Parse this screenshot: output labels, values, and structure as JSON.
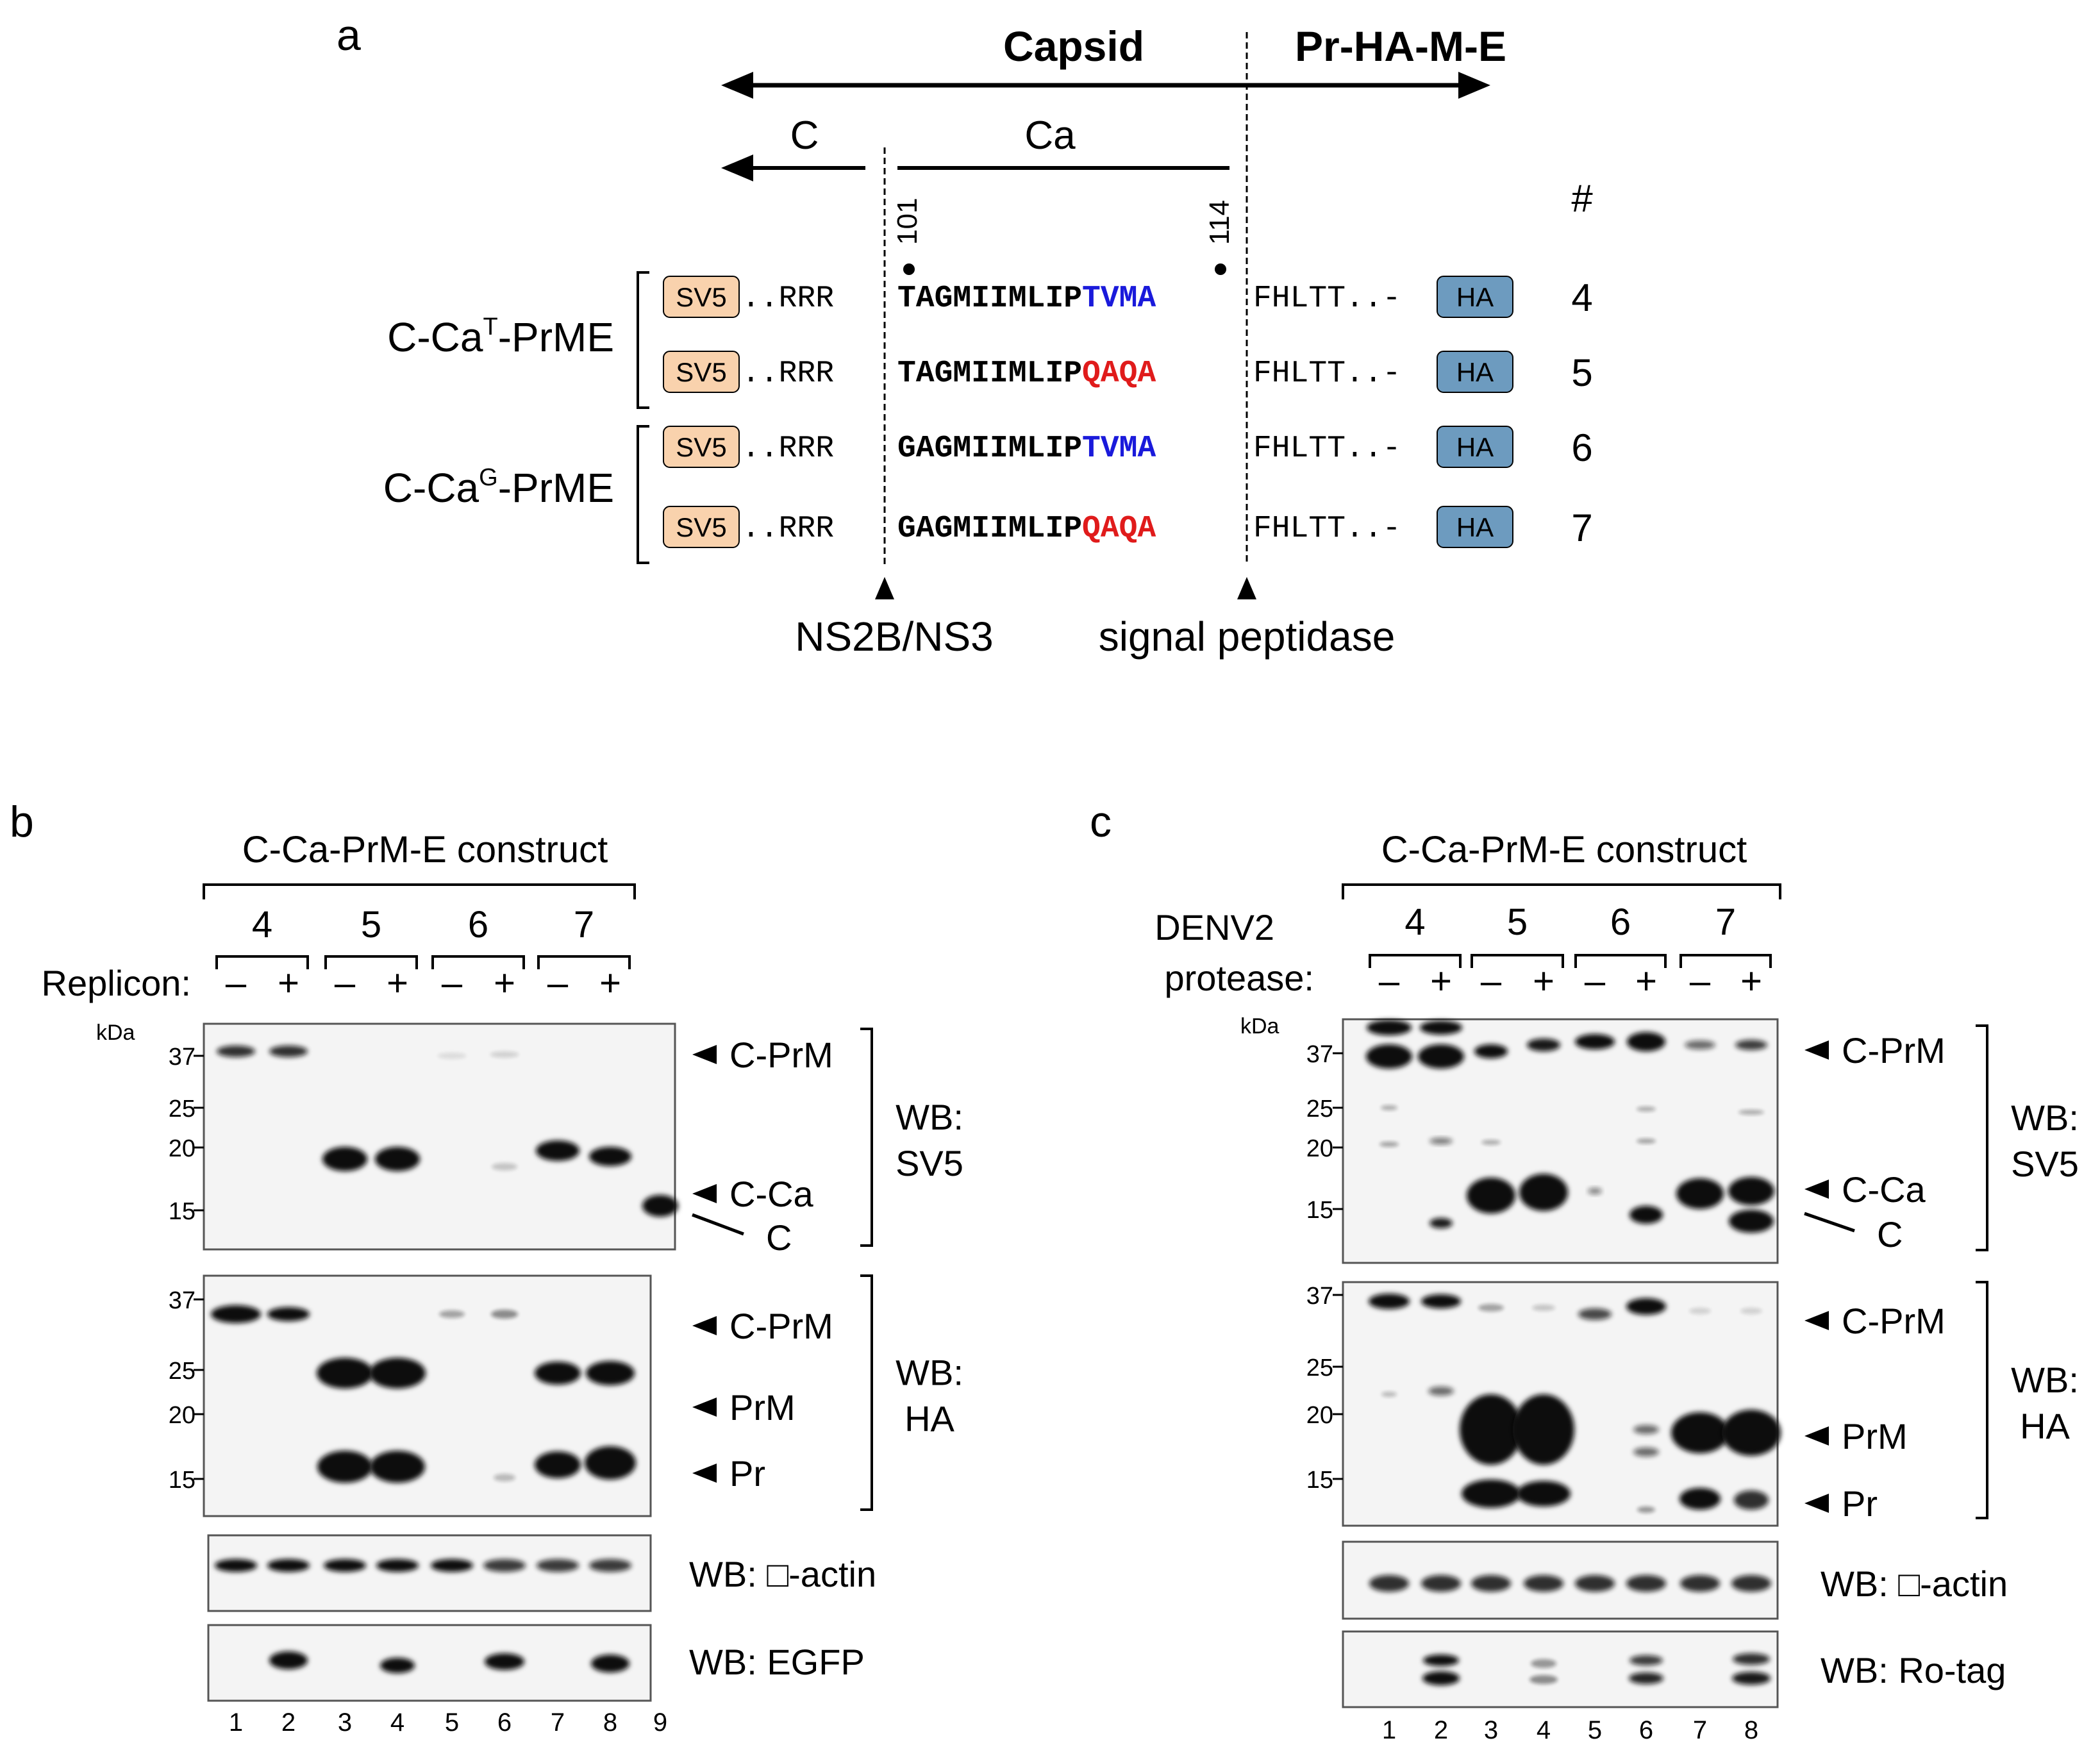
{
  "panel_a": {
    "label": "a",
    "capsid_label": "Capsid",
    "prhame_label": "Pr-HA-M-E",
    "c_label": "C",
    "ca_label": "Ca",
    "hash_label": "#",
    "pos_101": "101",
    "pos_114": "114",
    "group_t_label": {
      "prefix": "C-Ca",
      "sup": "T",
      "suffix": "-PrME"
    },
    "group_g_label": {
      "prefix": "C-Ca",
      "sup": "G",
      "suffix": "-PrME"
    },
    "sv5_tag": "SV5",
    "ha_tag": "HA",
    "dots": "..",
    "rrr": "RRR",
    "fhltt": "FHLTT",
    "dash": "-",
    "rows": [
      {
        "core": "TAGMIIMLIP",
        "tail": "TVMA",
        "tail_color": "#1a1adb",
        "num": "4"
      },
      {
        "core": "TAGMIIMLIP",
        "tail": "QAQA",
        "tail_color": "#e01b1b",
        "num": "5"
      },
      {
        "core": "GAGMIIMLIP",
        "tail": "TVMA",
        "tail_color": "#1a1adb",
        "num": "6"
      },
      {
        "core": "GAGMIIMLIP",
        "tail": "QAQA",
        "tail_color": "#e01b1b",
        "num": "7"
      }
    ],
    "cleavage_1": "NS2B/NS3",
    "cleavage_2": "signal peptidase",
    "colors": {
      "sv5_fill": "#f9d2ad",
      "ha_fill": "#6d9bbf"
    }
  },
  "panel_b": {
    "label": "b",
    "construct_title": "C-Ca-PrM-E construct",
    "construct_nums": [
      "4",
      "5",
      "6",
      "7"
    ],
    "condition_label": "Replicon:",
    "minus": "–",
    "plus": "+",
    "kda": "kDa",
    "sv5_markers": [
      "37",
      "25",
      "20",
      "15"
    ],
    "ha_markers": [
      "37",
      "25",
      "20",
      "15"
    ],
    "sv5_bands": [
      "C-PrM",
      "C-Ca",
      "C"
    ],
    "ha_bands": [
      "C-PrM",
      "PrM",
      "Pr"
    ],
    "wb_sv5": [
      "WB:",
      "SV5"
    ],
    "wb_ha": [
      "WB:",
      "HA"
    ],
    "wb_actin": "WB: □-actin",
    "wb_extra": "WB: EGFP",
    "lanes": [
      "1",
      "2",
      "3",
      "4",
      "5",
      "6",
      "7",
      "8",
      "9"
    ]
  },
  "panel_c": {
    "label": "c",
    "construct_title": "C-Ca-PrM-E construct",
    "construct_nums": [
      "4",
      "5",
      "6",
      "7"
    ],
    "condition_label_1": "DENV2",
    "condition_label_2": "protease:",
    "minus": "–",
    "plus": "+",
    "kda": "kDa",
    "sv5_markers": [
      "37",
      "25",
      "20",
      "15"
    ],
    "ha_markers": [
      "37",
      "25",
      "20",
      "15"
    ],
    "sv5_bands": [
      "C-PrM",
      "C-Ca",
      "C"
    ],
    "ha_bands": [
      "C-PrM",
      "PrM",
      "Pr"
    ],
    "wb_sv5": [
      "WB:",
      "SV5"
    ],
    "wb_ha": [
      "WB:",
      "HA"
    ],
    "wb_actin": "WB: □-actin",
    "wb_extra": "WB: Ro-tag",
    "lanes": [
      "1",
      "2",
      "3",
      "4",
      "5",
      "6",
      "7",
      "8"
    ]
  }
}
